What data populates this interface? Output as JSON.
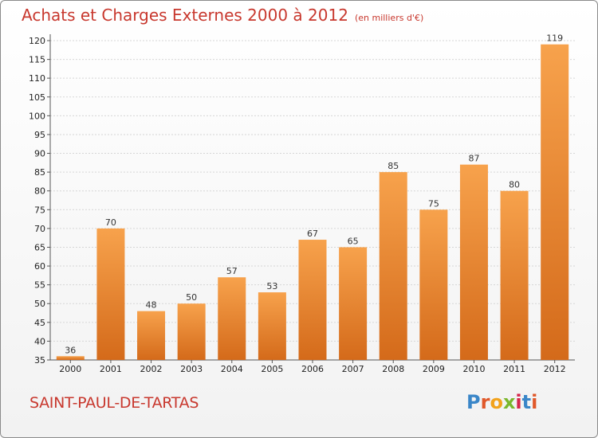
{
  "header": {
    "title": "Achats et Charges Externes 2000 à 2012",
    "subtitle": "(en milliers d'€)"
  },
  "footer": {
    "place": "SAINT-PAUL-DE-TARTAS",
    "logo": "Proxiti"
  },
  "colors": {
    "bar_top": "#f7a24c",
    "bar_bottom": "#d46a1a",
    "title": "#c8382e",
    "grid": "#d6d6d6"
  },
  "chart_data": {
    "type": "bar",
    "title": "Achats et Charges Externes 2000 à 2012",
    "subtitle": "(en milliers d'€)",
    "categories": [
      "2000",
      "2001",
      "2002",
      "2003",
      "2004",
      "2005",
      "2006",
      "2007",
      "2008",
      "2009",
      "2010",
      "2011",
      "2012"
    ],
    "values": [
      36,
      70,
      48,
      50,
      57,
      53,
      67,
      65,
      85,
      75,
      87,
      80,
      119
    ],
    "ylim": [
      35,
      120
    ],
    "yticks": [
      35,
      40,
      45,
      50,
      55,
      60,
      65,
      70,
      75,
      80,
      85,
      90,
      95,
      100,
      105,
      110,
      115,
      120
    ],
    "grid": true
  }
}
